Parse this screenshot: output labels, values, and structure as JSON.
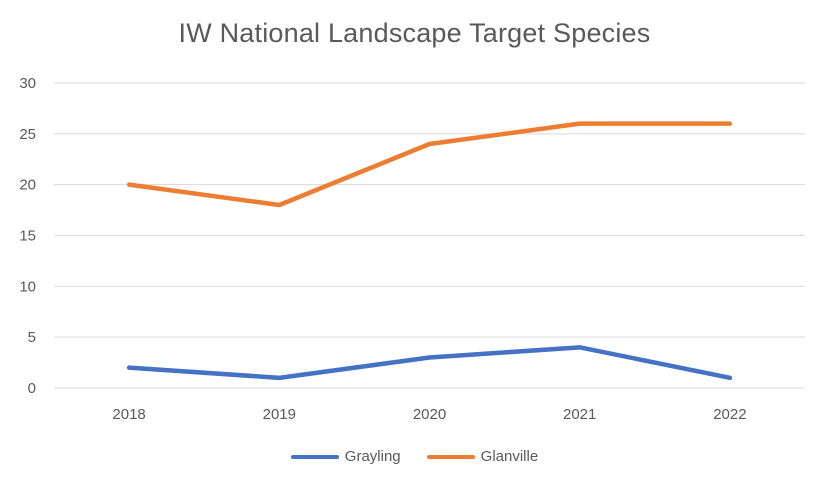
{
  "chart_data": {
    "type": "line",
    "title": "IW National Landscape Target Species",
    "xlabel": "",
    "ylabel": "",
    "categories": [
      "2018",
      "2019",
      "2020",
      "2021",
      "2022"
    ],
    "y_ticks": [
      "0",
      "5",
      "10",
      "15",
      "20",
      "25",
      "30"
    ],
    "ylim": [
      0,
      30
    ],
    "grid": true,
    "legend_position": "bottom",
    "series": [
      {
        "name": "Grayling",
        "values": [
          2,
          1,
          3,
          4,
          1
        ],
        "color": "#4472C4"
      },
      {
        "name": "Glanville",
        "values": [
          20,
          18,
          24,
          26,
          26
        ],
        "color": "#ED7D31"
      }
    ]
  }
}
